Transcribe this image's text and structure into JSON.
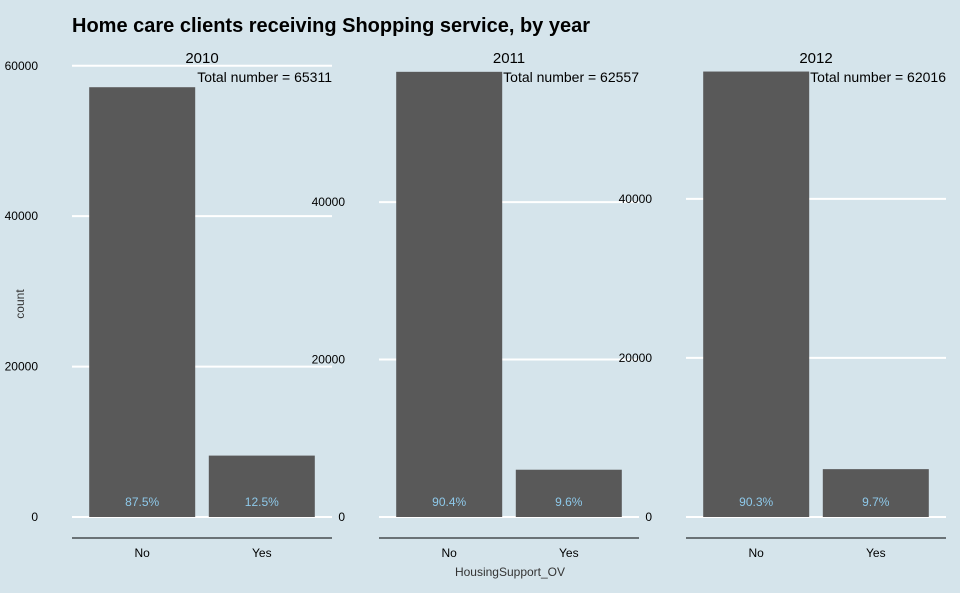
{
  "chart_data": {
    "type": "bar",
    "title": "Home care clients receiving Shopping service, by year",
    "xlabel": "HousingSupport_OV",
    "ylabel": "count",
    "grid": "horizontal major lines only",
    "colors": {
      "background": "#d5e4eb",
      "bar": "#595959",
      "gridline": "#ffffff",
      "percent_label": "#8ec9ea",
      "axis_line": "#000000"
    },
    "panels": [
      {
        "year": "2010",
        "total_label": "Total number = 65311",
        "categories": [
          "No",
          "Yes"
        ],
        "values": [
          57147,
          8164
        ],
        "percent_labels": [
          "87.5%",
          "12.5%"
        ],
        "y_ticks": [
          0,
          20000,
          40000,
          60000
        ],
        "ylim": [
          0,
          60500
        ]
      },
      {
        "year": "2011",
        "total_label": "Total number = 62557",
        "categories": [
          "No",
          "Yes"
        ],
        "values": [
          56552,
          6005
        ],
        "percent_labels": [
          "90.4%",
          "9.6%"
        ],
        "y_ticks": [
          0,
          20000,
          40000
        ],
        "ylim": [
          0,
          57800
        ]
      },
      {
        "year": "2012",
        "total_label": "Total number = 62016",
        "categories": [
          "No",
          "Yes"
        ],
        "values": [
          56000,
          6016
        ],
        "percent_labels": [
          "90.3%",
          "9.7%"
        ],
        "y_ticks": [
          0,
          20000,
          40000
        ],
        "ylim": [
          0,
          57200
        ]
      }
    ]
  }
}
